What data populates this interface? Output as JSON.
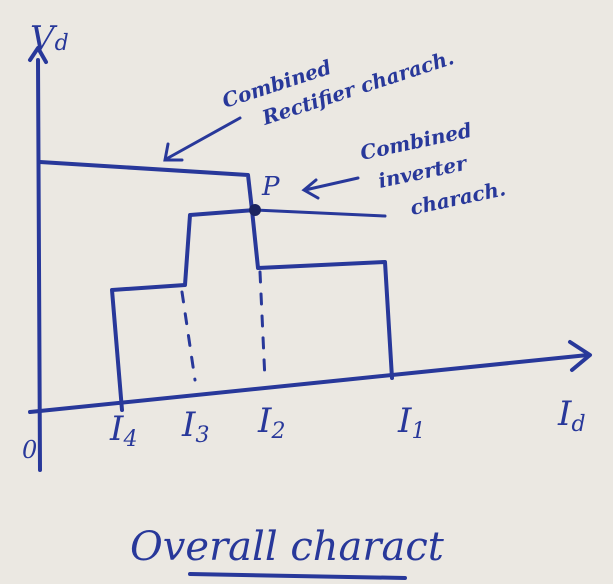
{
  "axes": {
    "y_label": {
      "main": "V",
      "sub": "d"
    },
    "x_label": {
      "main": "I",
      "sub": "d"
    },
    "origin": "0"
  },
  "annotations": {
    "rectifier": [
      "Combined",
      "Rectifier charach."
    ],
    "inverter": [
      "Combined",
      "inverter",
      "charach."
    ],
    "point": "P"
  },
  "current_labels": [
    {
      "main": "I",
      "sub": "4"
    },
    {
      "main": "I",
      "sub": "3"
    },
    {
      "main": "I",
      "sub": "2"
    },
    {
      "main": "I",
      "sub": "1"
    }
  ],
  "caption": "Overall charact"
}
